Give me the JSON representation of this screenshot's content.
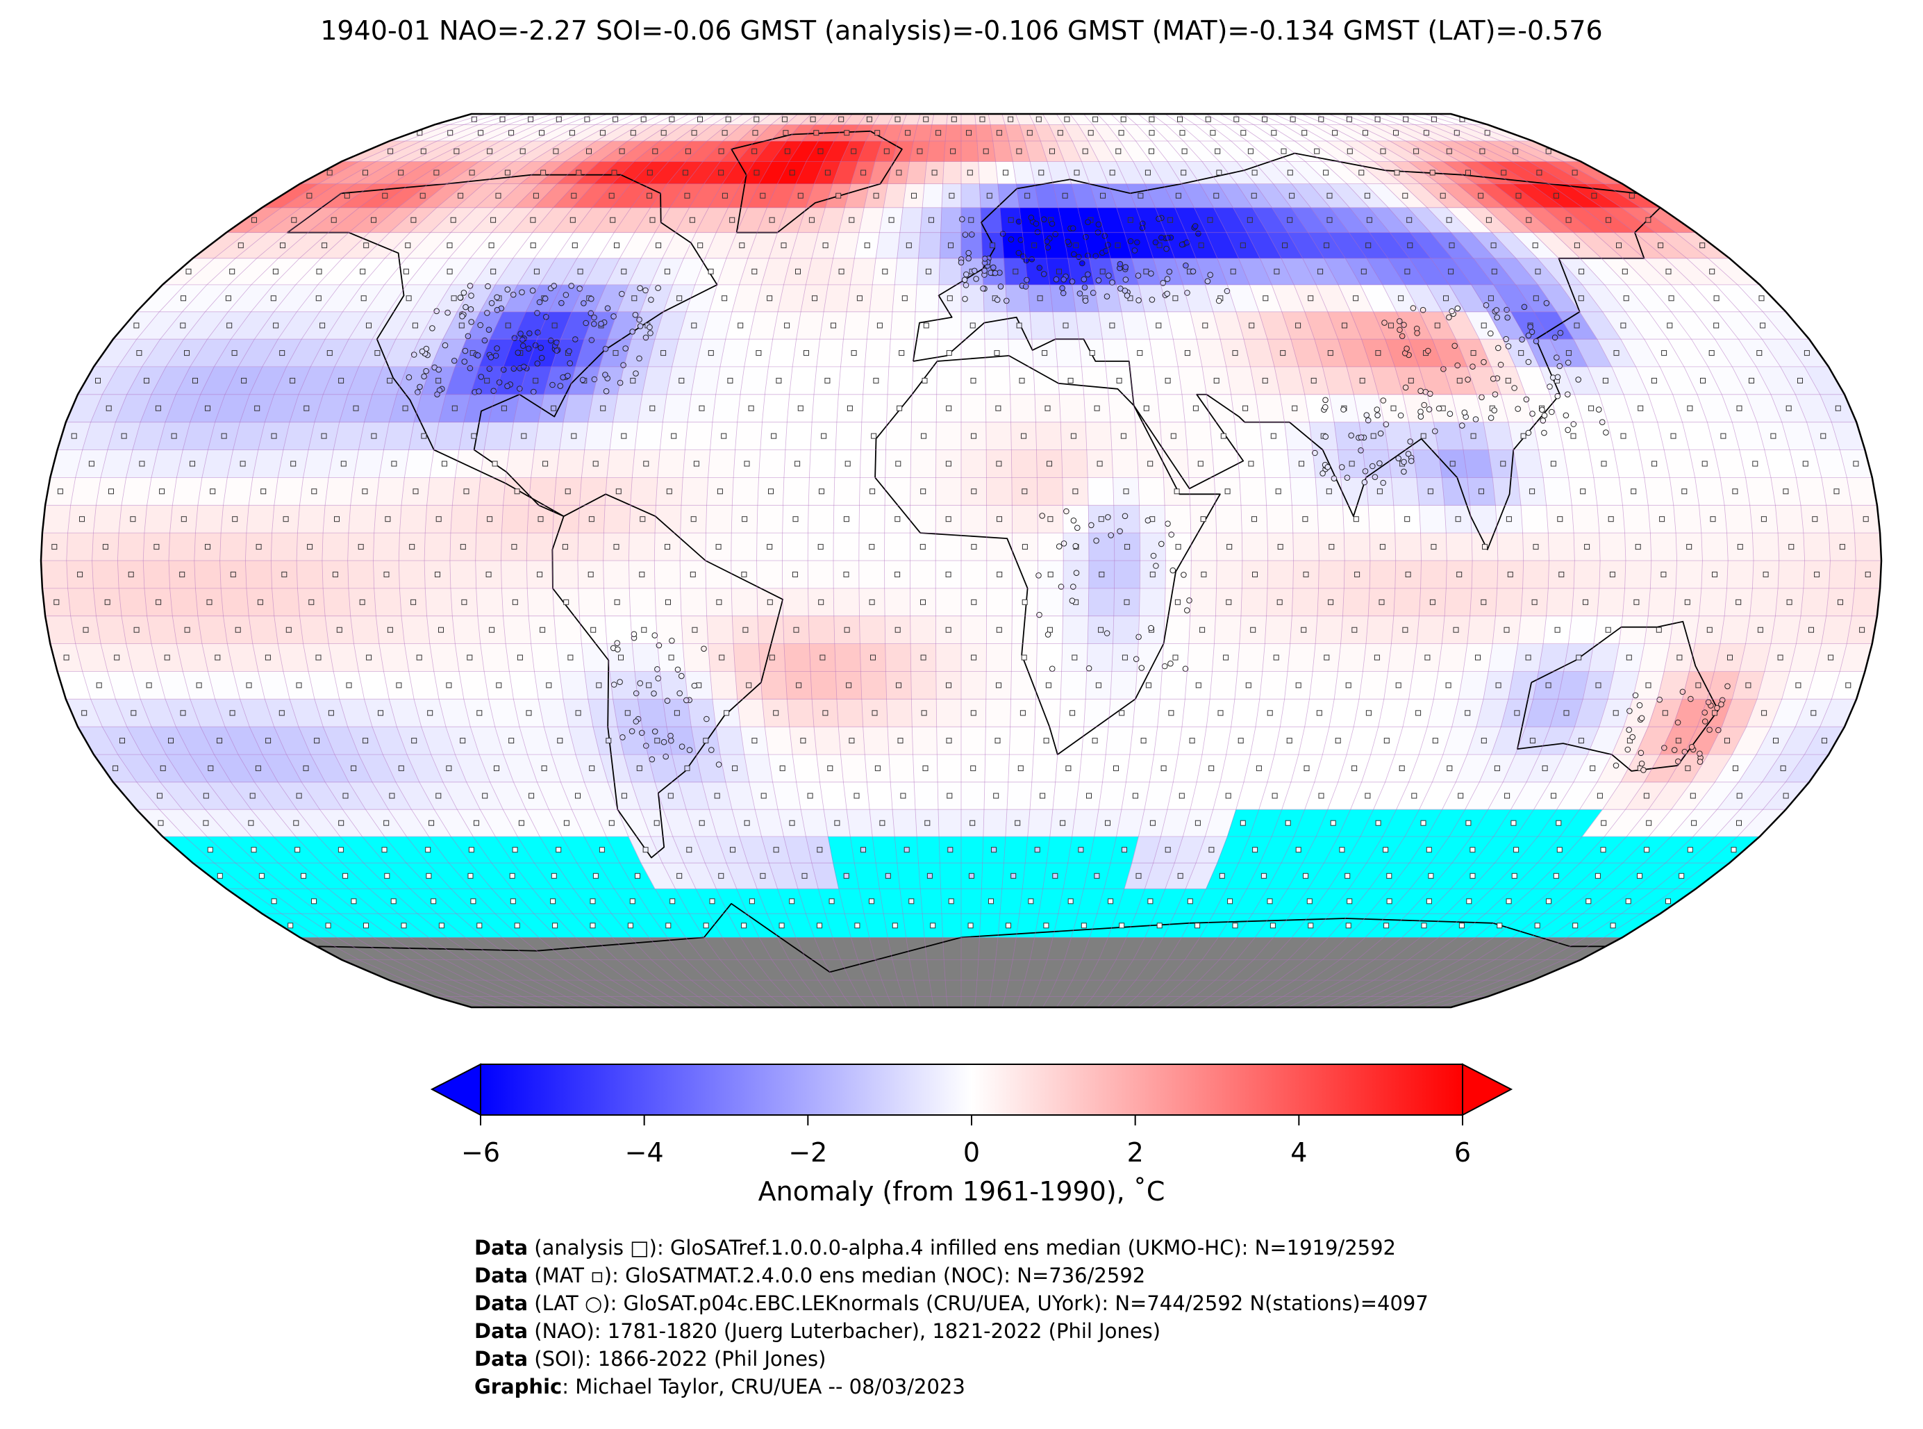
{
  "title": "1940-01 NAO=-2.27 SOI=-0.06 GMST (analysis)=-0.106 GMST (MAT)=-0.134 GMST (LAT)=-0.576",
  "colorbar": {
    "label": "Anomaly (from 1961-1990), ˚C",
    "ticks": [
      "−6",
      "−4",
      "−2",
      "0",
      "2",
      "4",
      "6"
    ],
    "range": [
      -6,
      6
    ],
    "colors": {
      "low": "#0000ff",
      "mid": "#ffffff",
      "high": "#ff0000",
      "no_data": "#00ffff",
      "land_ice": "#7f7f7f"
    }
  },
  "credits": [
    {
      "key": "Data",
      "text": " (analysis □): GloSATref.1.0.0.0-alpha.4 infilled ens median (UKMO-HC): N=1919/2592"
    },
    {
      "key": "Data",
      "text": " (MAT ▫): GloSATMAT.2.4.0.0 ens median (NOC): N=736/2592"
    },
    {
      "key": "Data",
      "text": " (LAT ○): GloSAT.p04c.EBC.LEKnormals (CRU/UEA, UYork): N=744/2592 N(stations)=4097"
    },
    {
      "key": "Data",
      "text": " (NAO): 1781-1820 (Juerg Luterbacher), 1821-2022 (Phil Jones)"
    },
    {
      "key": "Data",
      "text": " (SOI): 1866-2022 (Phil Jones)"
    },
    {
      "key": "Graphic",
      "text": ": Michael Taylor, CRU/UEA -- 08/03/2023"
    }
  ],
  "map": {
    "projection": "Robinson",
    "grid": "5x5 degree",
    "anomaly_regions": [
      {
        "name": "Greenland / Canadian Arctic",
        "anomaly": 5.5
      },
      {
        "name": "North America interior",
        "anomaly": -4.5
      },
      {
        "name": "Northern Europe / Siberia",
        "anomaly": -6
      },
      {
        "name": "Eastern Siberia / Alaska",
        "anomaly": 5
      },
      {
        "name": "South Asia",
        "anomaly": 1.5
      },
      {
        "name": "Australia east",
        "anomaly": 2.5
      },
      {
        "name": "Southern Ocean",
        "anomaly": null
      }
    ]
  }
}
